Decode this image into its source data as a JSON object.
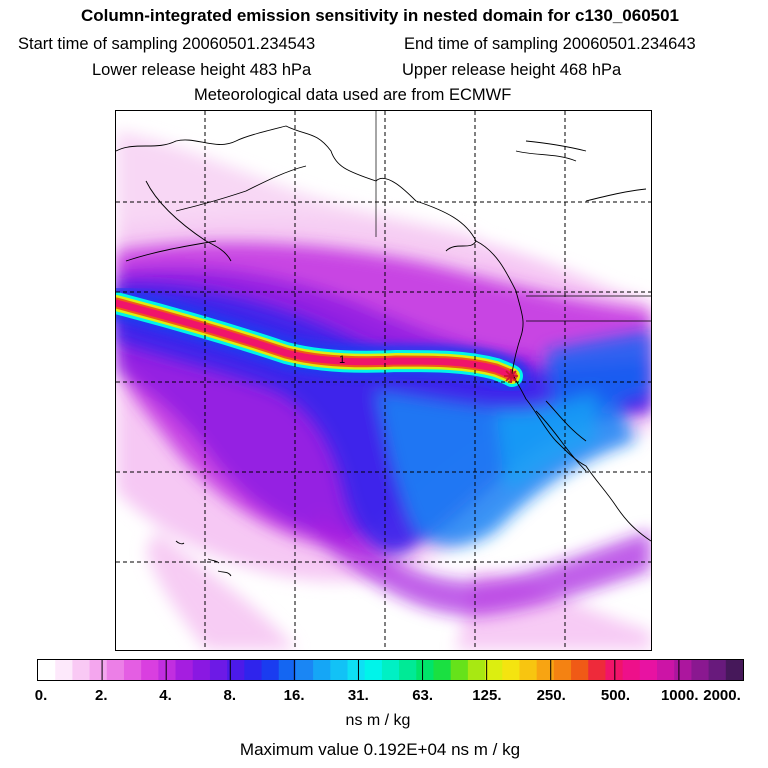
{
  "chart_data": {
    "type": "heatmap",
    "title": "Column-integrated emission sensitivity in nested domain for c130_060501",
    "subtitle": {
      "start_label": "Start time of sampling 20060501.234543",
      "end_label": "End time of sampling 20060501.234643",
      "lower_label": "Lower release height  483 hPa",
      "upper_label": "Upper release height  468 hPa",
      "met_label": "Meteorological data used are from ECMWF"
    },
    "colorbar": {
      "units": "ns m / kg",
      "tick_labels": [
        "0.",
        "2.",
        "4.",
        "8.",
        "16.",
        "31.",
        "63.",
        "125.",
        "250.",
        "500.",
        "1000.",
        "2000."
      ],
      "colors": [
        "#ffffff",
        "#fde9fb",
        "#f9c9f4",
        "#f4a6ee",
        "#ec7fe7",
        "#e45ee3",
        "#d93fe0",
        "#c12ee0",
        "#a51ee0",
        "#8a18e2",
        "#6d1ae6",
        "#4c1ae9",
        "#2f24ec",
        "#1a3cf0",
        "#1466f2",
        "#1a86f4",
        "#15a6f6",
        "#12c2f6",
        "#0ee0f4",
        "#00f4ea",
        "#00f0c4",
        "#00ea96",
        "#00e46a",
        "#1ae041",
        "#66e21a",
        "#a8e812",
        "#dcee10",
        "#f4e410",
        "#f8c510",
        "#f8a412",
        "#f48212",
        "#f05a16",
        "#ee2a3a",
        "#f0146a",
        "#ee108a",
        "#e812a2",
        "#cc14a6",
        "#ac169e",
        "#8a1890",
        "#681a7c",
        "#46185a"
      ]
    },
    "maximum_value_label": "Maximum value  0.192E+04 ns m / kg",
    "track_marker_label": "1",
    "icons": {
      "release_point": "star-icon"
    }
  }
}
